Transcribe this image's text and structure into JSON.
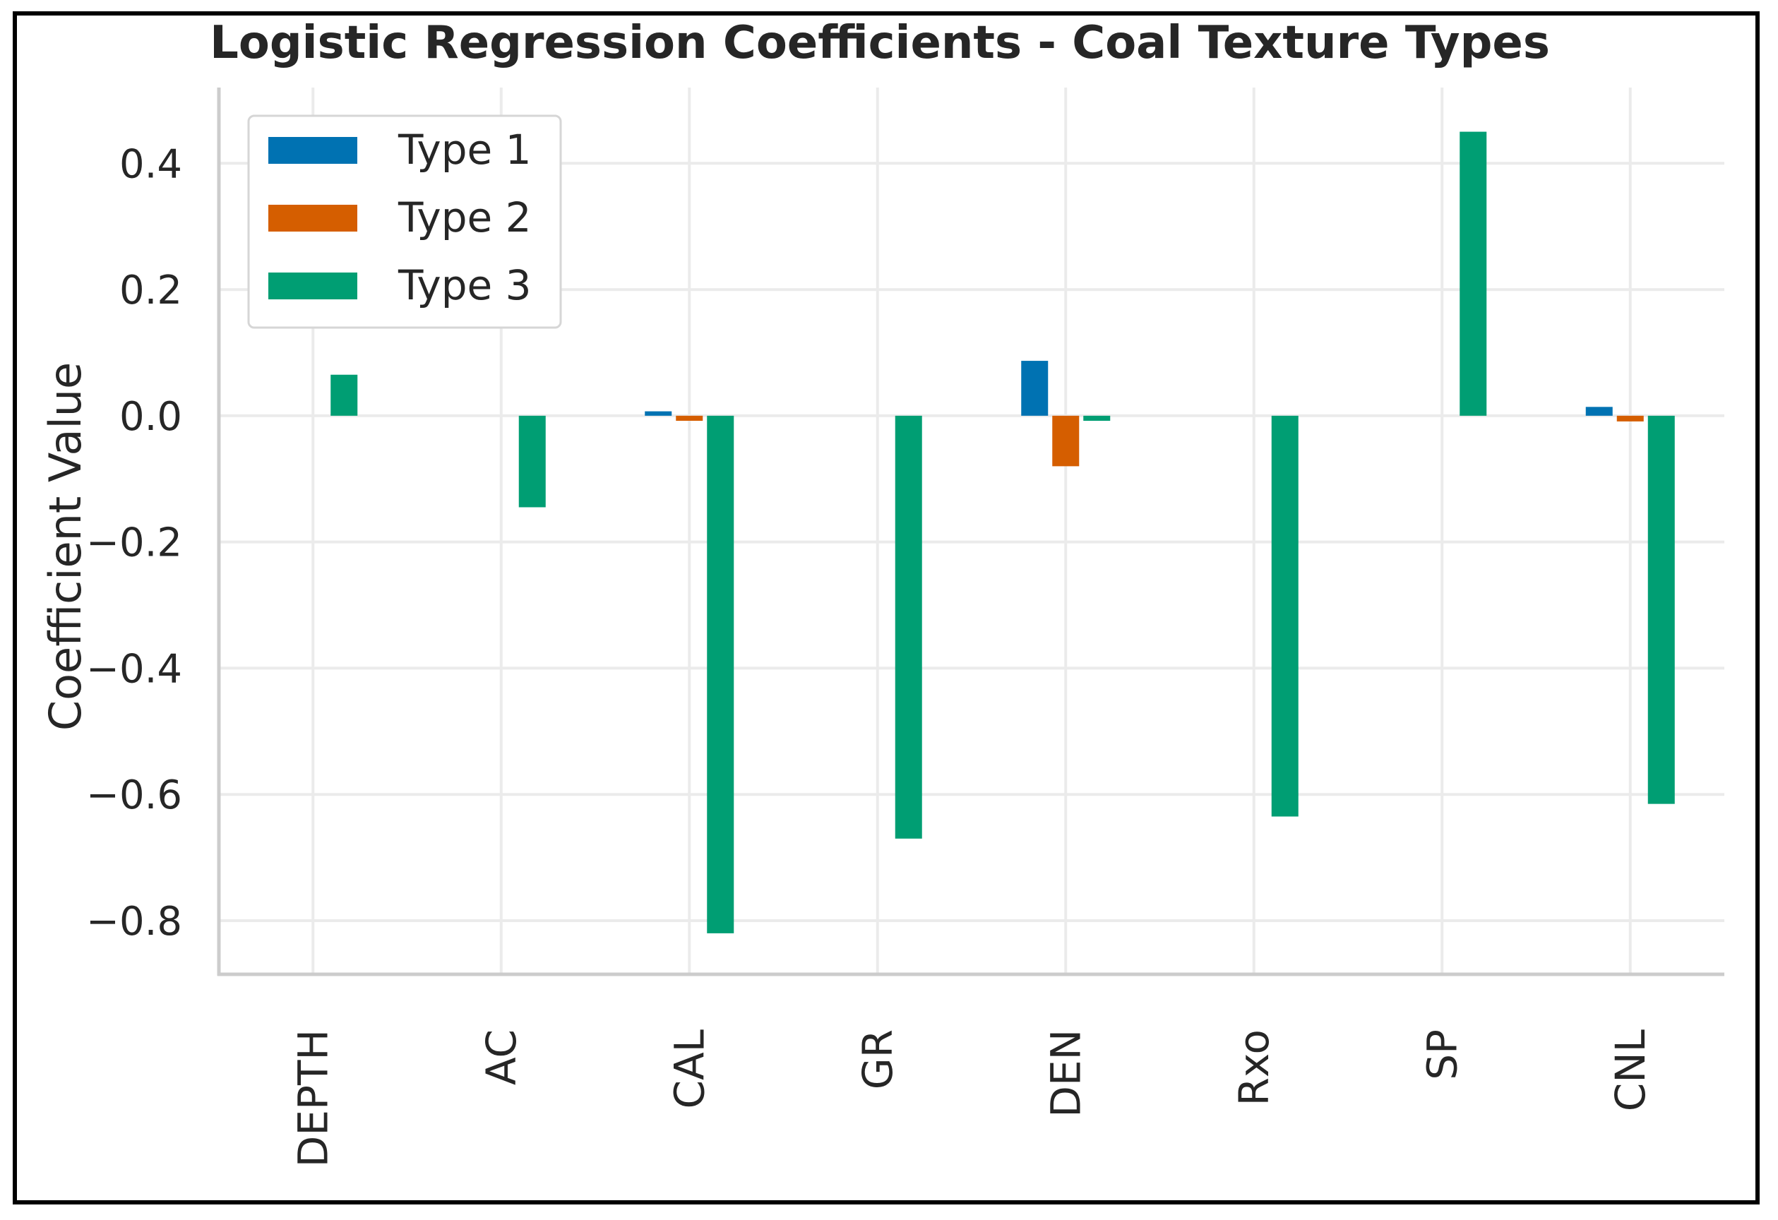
{
  "chart_data": {
    "type": "bar",
    "title": "Logistic Regression Coefficients - Coal Texture Types",
    "xlabel": "",
    "ylabel": "Coefficient Value",
    "categories": [
      "DEPTH",
      "AC",
      "CAL",
      "GR",
      "DEN",
      "Rxo",
      "SP",
      "CNL"
    ],
    "series": [
      {
        "name": "Type 1",
        "color": "#0072B2",
        "values": [
          0.0,
          0.0,
          0.007,
          0.0,
          0.087,
          0.0,
          0.0,
          0.014
        ]
      },
      {
        "name": "Type 2",
        "color": "#D55E00",
        "values": [
          0.0,
          0.0,
          -0.008,
          0.0,
          -0.08,
          0.0,
          0.0,
          -0.009
        ]
      },
      {
        "name": "Type 3",
        "color": "#009E73",
        "values": [
          0.065,
          -0.145,
          -0.82,
          -0.67,
          -0.008,
          -0.635,
          0.45,
          -0.615
        ]
      }
    ],
    "yticks": [
      0.4,
      0.2,
      0.0,
      -0.2,
      -0.4,
      -0.6,
      -0.8
    ],
    "ytick_labels": [
      "0.4",
      "0.2",
      "0.0",
      "−0.2",
      "−0.4",
      "−0.6",
      "−0.8"
    ],
    "ylim": [
      -0.885,
      0.52
    ],
    "grid": true,
    "legend_position": "top-left"
  }
}
